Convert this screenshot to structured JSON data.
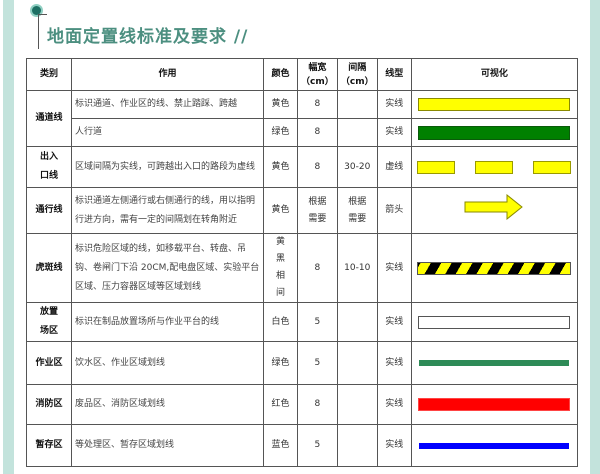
{
  "title": "地面定置线标准及要求 //",
  "headers": [
    "类别",
    "作用",
    "颜色",
    "幅宽（cm）",
    "间隔（cm）",
    "线型",
    "可视化"
  ],
  "header_width": [
    "幅宽",
    "（cm）"
  ],
  "header_gap": [
    "间隔",
    "（cm）"
  ],
  "rows": [
    {
      "category": "通道线",
      "desc": "标识通道、作业区的线、禁止踏踩、跨越",
      "color": "黄色",
      "width": "8",
      "gap": "",
      "type": "实线",
      "visual": "solid",
      "fill": "#ffff00"
    },
    {
      "category": "",
      "desc": "人行道",
      "color": "绿色",
      "width": "8",
      "gap": "",
      "type": "实线",
      "visual": "solid",
      "fill": "#008000"
    },
    {
      "category": "出入口线",
      "desc": "区域间隔为实线，可跨越出入口的路段为虚线",
      "color": "黄色",
      "width": "8",
      "gap": "30-20",
      "type": "虚线",
      "visual": "dashed",
      "fill": "#ffff00"
    },
    {
      "category": "通行线",
      "desc": "标识通道左侧通行或右侧通行的线，用以指明行进方向，需有一定的间隔划在转角附近",
      "color": "黄色",
      "width": "根据需要",
      "gap": "根据需要",
      "type": "箭头",
      "visual": "arrow",
      "fill": "#ffff00"
    },
    {
      "category": "虎斑线",
      "desc": "标识危险区域的线，如移载平台、转盘、吊钩、卷闸门下沿 20CM,配电盘区域、实验平台区域、压力容器区域等区域划线",
      "color": "黄黑相间",
      "width": "8",
      "gap": "10-10",
      "type": "实线",
      "visual": "hazard",
      "fill": "#ffff00"
    },
    {
      "category": "放置场区",
      "desc": "标识在制品放置场所与作业平台的线",
      "color": "白色",
      "width": "5",
      "gap": "",
      "type": "实线",
      "visual": "solid",
      "fill": "#ffffff"
    },
    {
      "category": "作业区",
      "desc": "饮水区、作业区域划线",
      "color": "绿色",
      "width": "5",
      "gap": "",
      "type": "实线",
      "visual": "thin",
      "fill": "#2e8b57"
    },
    {
      "category": "消防区",
      "desc": "废品区、消防区域划线",
      "color": "红色",
      "width": "8",
      "gap": "",
      "type": "实线",
      "visual": "solid",
      "fill": "#ff0000"
    },
    {
      "category": "暂存区",
      "desc": "等处理区、暂存区域划线",
      "color": "蓝色",
      "width": "5",
      "gap": "",
      "type": "实线",
      "visual": "thin",
      "fill": "#0000ff"
    }
  ]
}
